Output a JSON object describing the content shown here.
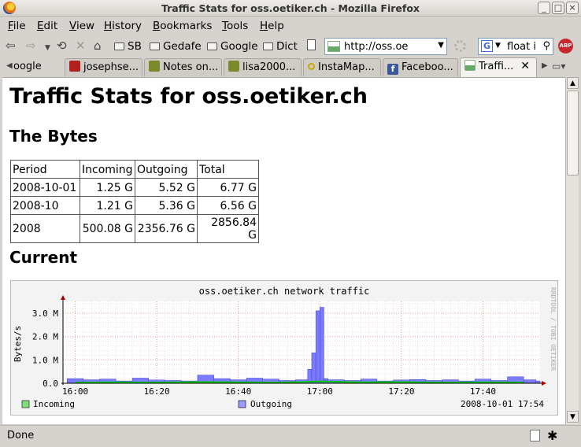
{
  "window": {
    "title": "Traffic Stats for oss.oetiker.ch - Mozilla Firefox"
  },
  "menubar": {
    "items": [
      {
        "label": "File"
      },
      {
        "label": "Edit"
      },
      {
        "label": "View"
      },
      {
        "label": "History"
      },
      {
        "label": "Bookmarks"
      },
      {
        "label": "Tools"
      },
      {
        "label": "Help"
      }
    ]
  },
  "bookmarks": {
    "items": [
      "SB",
      "Gedafe",
      "Google",
      "Dict"
    ]
  },
  "navigation": {
    "url": "http://oss.oe",
    "search_value": "float i",
    "search_engine": "G",
    "adblock_label": "ABP"
  },
  "tabs": [
    {
      "label": "oogle"
    },
    {
      "label": "josephse..."
    },
    {
      "label": "Notes on..."
    },
    {
      "label": "lisa2000..."
    },
    {
      "label": "InstaMap..."
    },
    {
      "label": "Faceboo..."
    },
    {
      "label": "Traffi..."
    }
  ],
  "page": {
    "heading": "Traffic Stats for oss.oetiker.ch",
    "bytes_heading": "The Bytes",
    "current_heading": "Current",
    "table": {
      "headers": [
        "Period",
        "Incoming",
        "Outgoing",
        "Total"
      ],
      "rows": [
        [
          "2008-10-01",
          "1.25 G",
          "5.52 G",
          "6.77 G"
        ],
        [
          "2008-10",
          "1.21 G",
          "5.36 G",
          "6.56 G"
        ],
        [
          "2008",
          "500.08 G",
          "2356.76 G",
          "2856.84 G"
        ]
      ]
    }
  },
  "chart_data": {
    "type": "area",
    "title": "oss.oetiker.ch network traffic",
    "ylabel": "Bytes/s",
    "watermark": "RRDTOOL / TOBI OETIKER",
    "timestamp": "2008-10-01 17:54",
    "x_ticks": [
      "16:00",
      "16:20",
      "16:40",
      "17:00",
      "17:20",
      "17:40"
    ],
    "y_ticks": [
      "0.0",
      "1.0 M",
      "2.0 M",
      "3.0 M"
    ],
    "ylim": [
      0,
      3.5
    ],
    "y_unit": "M",
    "xlim": [
      "15:57",
      "17:54"
    ],
    "grid": true,
    "legend": "bottom",
    "colors": {
      "incoming": "#00cc00",
      "outgoing": "#7b7bff"
    },
    "series": [
      {
        "name": "Incoming",
        "x": [
          "16:00",
          "16:10",
          "16:20",
          "16:30",
          "16:40",
          "16:50",
          "17:00",
          "17:10",
          "17:20",
          "17:30",
          "17:40",
          "17:50"
        ],
        "values": [
          0.03,
          0.04,
          0.03,
          0.05,
          0.04,
          0.03,
          0.08,
          0.04,
          0.05,
          0.03,
          0.04,
          0.03
        ]
      },
      {
        "name": "Outgoing",
        "x": [
          "15:58",
          "16:02",
          "16:06",
          "16:10",
          "16:14",
          "16:18",
          "16:22",
          "16:26",
          "16:30",
          "16:34",
          "16:38",
          "16:42",
          "16:46",
          "16:50",
          "16:54",
          "16:57",
          "16:58",
          "16:59",
          "17:00",
          "17:01",
          "17:02",
          "17:06",
          "17:10",
          "17:14",
          "17:18",
          "17:22",
          "17:26",
          "17:30",
          "17:34",
          "17:38",
          "17:42",
          "17:46",
          "17:50",
          "17:53"
        ],
        "values": [
          0.2,
          0.15,
          0.18,
          0.1,
          0.22,
          0.14,
          0.12,
          0.1,
          0.35,
          0.2,
          0.15,
          0.22,
          0.18,
          0.12,
          0.15,
          0.6,
          1.3,
          3.1,
          3.25,
          0.2,
          0.15,
          0.12,
          0.18,
          0.1,
          0.14,
          0.16,
          0.12,
          0.15,
          0.1,
          0.18,
          0.12,
          0.28,
          0.15,
          0.1
        ]
      }
    ]
  },
  "statusbar": {
    "text": "Done"
  }
}
